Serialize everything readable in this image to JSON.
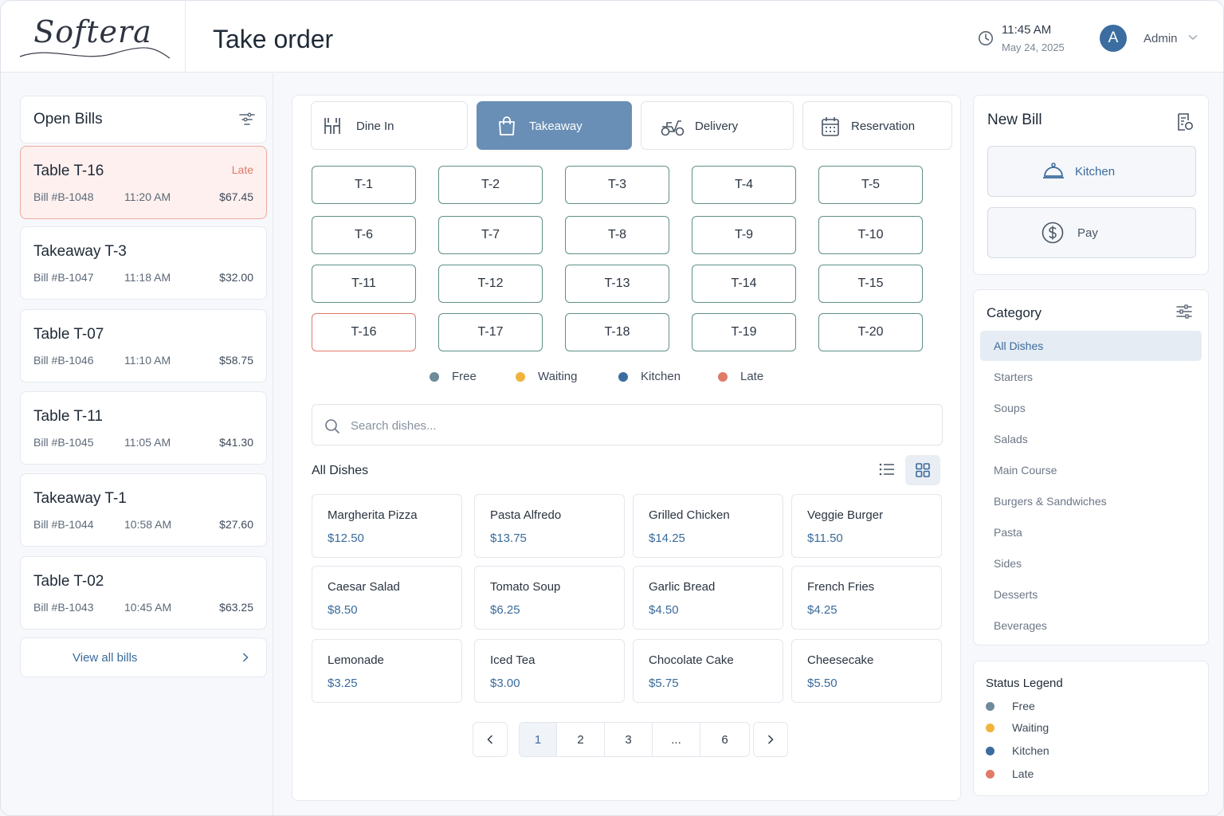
{
  "brand": {
    "logo": "Softera"
  },
  "header": {
    "title": "Take order",
    "time": "11:45 AM",
    "date": "May 24, 2025",
    "avatar_initial": "A",
    "user": "Admin"
  },
  "open_bills": {
    "title": "Open Bills",
    "items": [
      {
        "name": "Table T-16",
        "status": "Late",
        "bill": "Bill #B-1048",
        "time": "11:20 AM",
        "amount": "$67.45"
      },
      {
        "name": "Takeaway T-3",
        "status": "",
        "bill": "Bill #B-1047",
        "time": "11:18 AM",
        "amount": "$32.00"
      },
      {
        "name": "Table T-07",
        "status": "",
        "bill": "Bill #B-1046",
        "time": "11:10 AM",
        "amount": "$58.75"
      },
      {
        "name": "Table T-11",
        "status": "",
        "bill": "Bill #B-1045",
        "time": "11:05 AM",
        "amount": "$41.30"
      },
      {
        "name": "Takeaway T-1",
        "status": "",
        "bill": "Bill #B-1044",
        "time": "10:58 AM",
        "amount": "$27.60"
      },
      {
        "name": "Table T-02",
        "status": "",
        "bill": "Bill #B-1043",
        "time": "10:45 AM",
        "amount": "$63.25"
      }
    ],
    "view_all": "View all bills"
  },
  "order_types": [
    {
      "label": "Dine In",
      "icon": "dine-in-icon",
      "active": false
    },
    {
      "label": "Takeaway",
      "icon": "shopping-bag-icon",
      "active": true
    },
    {
      "label": "Delivery",
      "icon": "scooter-icon",
      "active": false
    },
    {
      "label": "Reservation",
      "icon": "calendar-icon",
      "active": false
    }
  ],
  "tables": [
    "T-1",
    "T-2",
    "T-3",
    "T-4",
    "T-5",
    "T-6",
    "T-7",
    "T-8",
    "T-9",
    "T-10",
    "T-11",
    "T-12",
    "T-13",
    "T-14",
    "T-15",
    "T-16",
    "T-17",
    "T-18",
    "T-19",
    "T-20"
  ],
  "late_table": "T-16",
  "table_legend": [
    {
      "label": "Free",
      "color": "#6f8a9a"
    },
    {
      "label": "Waiting",
      "color": "#f0b43c"
    },
    {
      "label": "Kitchen",
      "color": "#3b6da0"
    },
    {
      "label": "Late",
      "color": "#e07b68"
    }
  ],
  "search": {
    "placeholder": "Search dishes..."
  },
  "dishes": {
    "title": "All Dishes",
    "items": [
      {
        "name": "Margherita Pizza",
        "price": "$12.50"
      },
      {
        "name": "Pasta Alfredo",
        "price": "$13.75"
      },
      {
        "name": "Grilled Chicken",
        "price": "$14.25"
      },
      {
        "name": "Veggie Burger",
        "price": "$11.50"
      },
      {
        "name": "Caesar Salad",
        "price": "$8.50"
      },
      {
        "name": "Tomato Soup",
        "price": "$6.25"
      },
      {
        "name": "Garlic Bread",
        "price": "$4.50"
      },
      {
        "name": "French Fries",
        "price": "$4.25"
      },
      {
        "name": "Lemonade",
        "price": "$3.25"
      },
      {
        "name": "Iced Tea",
        "price": "$3.00"
      },
      {
        "name": "Chocolate Cake",
        "price": "$5.75"
      },
      {
        "name": "Cheesecake",
        "price": "$5.50"
      }
    ]
  },
  "pagination": {
    "pages": [
      "1",
      "2",
      "3",
      "...",
      "6"
    ],
    "current": "1"
  },
  "new_bill": {
    "title": "New Bill",
    "kitchen": "Kitchen",
    "pay": "Pay"
  },
  "category": {
    "title": "Category",
    "items": [
      "All Dishes",
      "Starters",
      "Soups",
      "Salads",
      "Main Course",
      "Burgers & Sandwiches",
      "Pasta",
      "Sides",
      "Desserts",
      "Beverages"
    ],
    "active": "All Dishes"
  },
  "status_legend": {
    "title": "Status Legend",
    "items": [
      {
        "label": "Free",
        "color": "#6f8a9a"
      },
      {
        "label": "Waiting",
        "color": "#f0b43c"
      },
      {
        "label": "Kitchen",
        "color": "#3b6da0"
      },
      {
        "label": "Late",
        "color": "#e07b68"
      }
    ]
  }
}
